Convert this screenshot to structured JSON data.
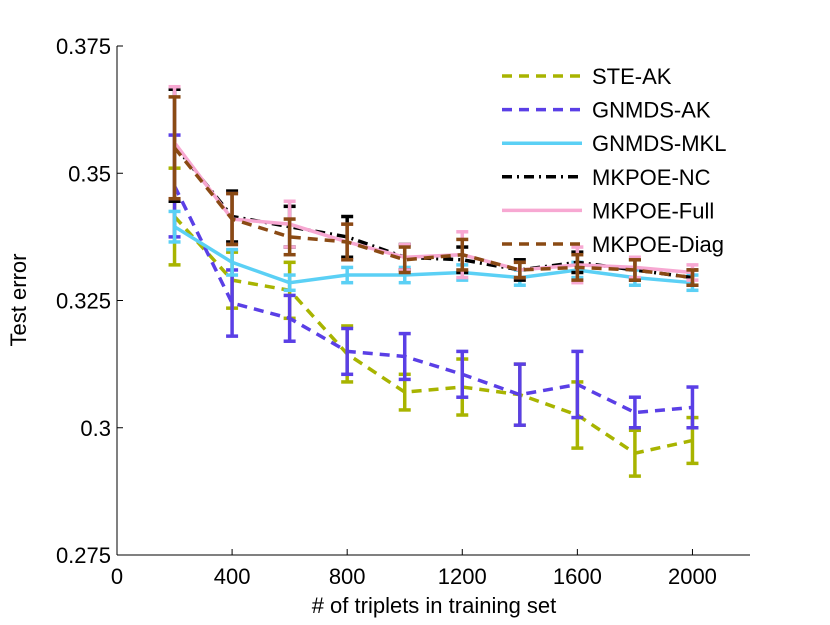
{
  "chart_data": {
    "type": "line",
    "title": "",
    "xlabel": "# of triplets in training set",
    "ylabel": "Test error",
    "xlim": [
      0,
      2200
    ],
    "ylim": [
      0.275,
      0.375
    ],
    "xticks": [
      0,
      400,
      800,
      1200,
      1600,
      2000
    ],
    "xtick_labels": [
      "0",
      "400",
      "800",
      "1200",
      "1600",
      "2000"
    ],
    "yticks": [
      0.275,
      0.3,
      0.325,
      0.35,
      0.375
    ],
    "ytick_labels": [
      "0.275",
      "0.3",
      "0.325",
      "0.35",
      "0.375"
    ],
    "grid": false,
    "legend_position": "top-right",
    "x": [
      200,
      400,
      600,
      800,
      1000,
      1200,
      1400,
      1600,
      1800,
      2000
    ],
    "series": [
      {
        "name": "STE-AK",
        "color": "#a8b400",
        "dash": "dashed",
        "values": [
          0.3415,
          0.329,
          0.327,
          0.3145,
          0.307,
          0.308,
          0.3065,
          0.3025,
          0.295,
          0.2975
        ],
        "err": [
          0.0095,
          0.0055,
          0.0055,
          0.0055,
          0.0035,
          0.0055,
          0.006,
          0.0065,
          0.0045,
          0.0045
        ]
      },
      {
        "name": "GNMDS-AK",
        "color": "#5a3fe6",
        "dash": "dashed",
        "values": [
          0.3475,
          0.3245,
          0.3215,
          0.315,
          0.314,
          0.3105,
          0.3065,
          0.3085,
          0.303,
          0.304
        ],
        "err": [
          0.01,
          0.0065,
          0.0045,
          0.0045,
          0.0045,
          0.0045,
          0.006,
          0.0065,
          0.003,
          0.004
        ]
      },
      {
        "name": "GNMDS-MKL",
        "color": "#5bd0f5",
        "dash": "solid",
        "values": [
          0.3395,
          0.3325,
          0.3285,
          0.33,
          0.33,
          0.3305,
          0.3295,
          0.331,
          0.3295,
          0.3285
        ],
        "err": [
          0.003,
          0.0025,
          0.0015,
          0.0015,
          0.0015,
          0.0015,
          0.0015,
          0.0015,
          0.0015,
          0.0015
        ]
      },
      {
        "name": "MKPOE-NC",
        "color": "#000000",
        "dash": "dashdot",
        "values": [
          0.3555,
          0.3415,
          0.3395,
          0.3375,
          0.3335,
          0.333,
          0.331,
          0.3325,
          0.331,
          0.3295
        ],
        "err": [
          0.011,
          0.005,
          0.004,
          0.004,
          0.0025,
          0.0025,
          0.002,
          0.002,
          0.002,
          0.0015
        ]
      },
      {
        "name": "MKPOE-Full",
        "color": "#f7a8d2",
        "dash": "solid",
        "values": [
          0.356,
          0.341,
          0.34,
          0.3365,
          0.3335,
          0.334,
          0.331,
          0.332,
          0.3315,
          0.3305
        ],
        "err": [
          0.011,
          0.005,
          0.0045,
          0.0035,
          0.0025,
          0.0045,
          0.0015,
          0.0035,
          0.002,
          0.0015
        ]
      },
      {
        "name": "MKPOE-Diag",
        "color": "#8a4a14",
        "dash": "dashed",
        "values": [
          0.355,
          0.341,
          0.3375,
          0.3365,
          0.333,
          0.334,
          0.331,
          0.3315,
          0.331,
          0.3295
        ],
        "err": [
          0.01,
          0.005,
          0.0035,
          0.0035,
          0.0025,
          0.003,
          0.0015,
          0.0025,
          0.002,
          0.0015
        ]
      }
    ]
  }
}
